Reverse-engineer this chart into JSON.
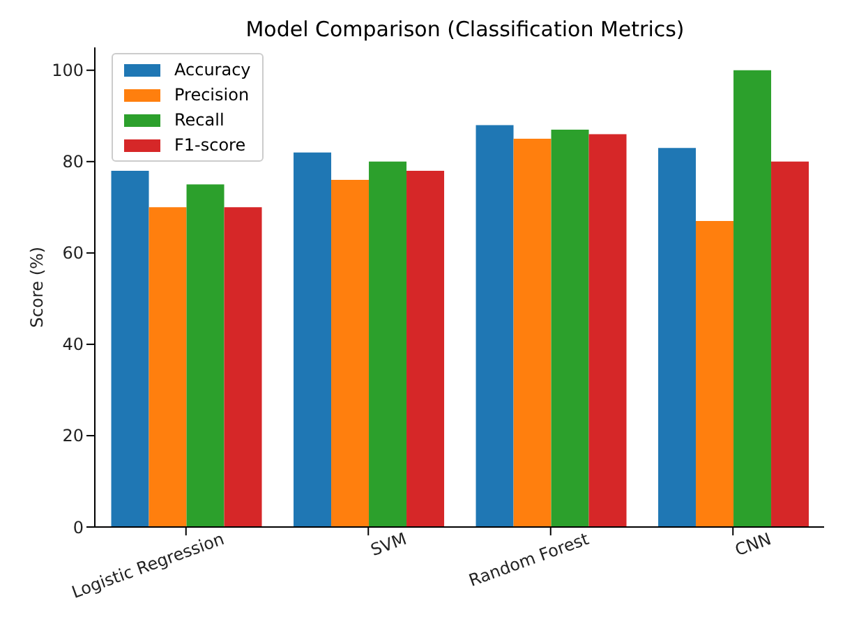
{
  "chart_data": {
    "type": "bar",
    "title": "Model Comparison (Classification Metrics)",
    "ylabel": "Score (%)",
    "categories": [
      "Logistic Regression",
      "SVM",
      "Random Forest",
      "CNN"
    ],
    "series": [
      {
        "name": "Accuracy",
        "color": "#1f77b4",
        "values": [
          78,
          82,
          88,
          83
        ]
      },
      {
        "name": "Precision",
        "color": "#ff7f0e",
        "values": [
          70,
          76,
          85,
          67
        ]
      },
      {
        "name": "Recall",
        "color": "#2ca02c",
        "values": [
          75,
          80,
          87,
          100
        ]
      },
      {
        "name": "F1-score",
        "color": "#d62728",
        "values": [
          70,
          78,
          86,
          80
        ]
      }
    ],
    "ylim": [
      0,
      105
    ],
    "yticks": [
      0,
      20,
      40,
      60,
      80,
      100
    ],
    "legend": "top left",
    "grid": false
  }
}
